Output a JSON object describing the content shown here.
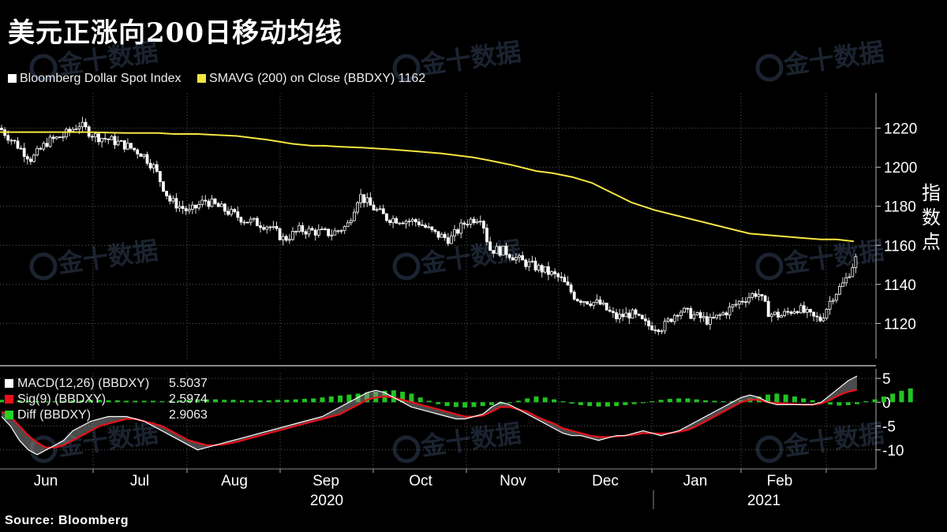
{
  "title": "美元正涨向200日移动均线",
  "source": "Source:  Bloomberg",
  "watermark": "金十数据",
  "legend": [
    {
      "label": "Bloomberg Dollar Spot Index",
      "color": "#ffffff"
    },
    {
      "label": "SMAVG (200)  on Close (BBDXY) 1162",
      "color": "#f5e642"
    }
  ],
  "macd_legend": [
    {
      "label": "MACD(12,26) (BBDXY)",
      "value": "5.5037",
      "color": "#ffffff"
    },
    {
      "label": "Sig(9) (BBDXY)",
      "value": "2.5974",
      "color": "#e8101a"
    },
    {
      "label": "Diff (BBDXY)",
      "value": "2.9063",
      "color": "#22d322"
    }
  ],
  "y_unit": "指数点",
  "chart_data": [
    {
      "type": "line",
      "title": "",
      "x_months": [
        "Jun",
        "Jul",
        "Aug",
        "Sep",
        "Oct",
        "Nov",
        "Dec",
        "Jan",
        "Feb"
      ],
      "x_years": [
        "2020",
        "2021"
      ],
      "ylim": [
        1102,
        1238
      ],
      "yticks": [
        1120,
        1140,
        1160,
        1180,
        1200,
        1220
      ],
      "ylabel": "指数点",
      "series": [
        {
          "name": "Bloomberg Dollar Spot Index",
          "style": "candles",
          "x": [
            0,
            4,
            8,
            12,
            16,
            20,
            24,
            28,
            32,
            36,
            40,
            44,
            48,
            52,
            56,
            60,
            64,
            68,
            72,
            76,
            80,
            84,
            88,
            92,
            96,
            100,
            104,
            108,
            112,
            116,
            120,
            124,
            128,
            132,
            136,
            140,
            144,
            148,
            152,
            156,
            160,
            164,
            168,
            172,
            176,
            180,
            184,
            188,
            192,
            196,
            200,
            204,
            208,
            212,
            216,
            220,
            224,
            228,
            232,
            236,
            240,
            244,
            248,
            252,
            256
          ],
          "values": [
            1224,
            1216,
            1214,
            1212,
            1209,
            1205,
            1202,
            1210,
            1215,
            1214,
            1212,
            1216,
            1213,
            1211,
            1214,
            1218,
            1221,
            1218,
            1216,
            1214,
            1213,
            1212,
            1210,
            1208,
            1210,
            1211,
            1209,
            1210,
            1206,
            1207,
            1205,
            1203,
            1201,
            1195,
            1186,
            1180,
            1178,
            1177,
            1176,
            1178,
            1180,
            1181,
            1180,
            1178,
            1177,
            1175,
            1172,
            1170,
            1168,
            1167,
            1166,
            1164,
            1162,
            1163,
            1165,
            1167,
            1168,
            1168,
            1170,
            1171,
            1170,
            1169,
            1168,
            1166,
            1170
          ]
        },
        {
          "name": "SMAVG (200)  on Close (BBDXY) 1162",
          "x": [
            0,
            60,
            110,
            160,
            200,
            220,
            250,
            300,
            340,
            370,
            395,
            410,
            430,
            460,
            500,
            530,
            560,
            580,
            600,
            620,
            650,
            680,
            700,
            725,
            750,
            780,
            800,
            830,
            860,
            890,
            920,
            950,
            980,
            1010,
            1040,
            1060,
            1082
          ],
          "values": [
            1218,
            1218,
            1218,
            1217.5,
            1217.5,
            1217,
            1217,
            1216,
            1214,
            1212,
            1211,
            1211,
            1210.5,
            1210,
            1209,
            1208,
            1207,
            1206,
            1205,
            1203.5,
            1201,
            1198,
            1197,
            1195,
            1192,
            1186,
            1182,
            1178,
            1175,
            1172,
            1169,
            1166,
            1165,
            1164,
            1163,
            1163,
            1162
          ]
        }
      ]
    },
    {
      "type": "line",
      "title": "",
      "ylim": [
        -14,
        7
      ],
      "yticks": [
        -10,
        -5,
        0,
        5
      ],
      "series": [
        {
          "name": "MACD(12,26) (BBDXY)",
          "values": [
            -3,
            -5,
            -8,
            -10,
            -11,
            -10,
            -9,
            -8,
            -6,
            -5,
            -4,
            -3.5,
            -3,
            -3,
            -3,
            -3.5,
            -4,
            -5,
            -6,
            -7,
            -8,
            -9,
            -10,
            -9.5,
            -9,
            -8.5,
            -8,
            -7.5,
            -7,
            -6.5,
            -6,
            -5.5,
            -5,
            -4.5,
            -4,
            -3.5,
            -3,
            -2,
            -1,
            0,
            1,
            2,
            2.5,
            2,
            1,
            0,
            -1,
            -1.5,
            -2,
            -2.5,
            -3,
            -3.5,
            -3.5,
            -3,
            -2.5,
            -1,
            0,
            -0.5,
            -1.5,
            -2.5,
            -3.5,
            -4.5,
            -5.5,
            -6.5,
            -7,
            -7,
            -7.5,
            -8,
            -7.5,
            -7,
            -7,
            -6.5,
            -6,
            -6.5,
            -7,
            -6.5,
            -6,
            -5,
            -4,
            -3,
            -2,
            -1,
            0,
            1,
            1.5,
            1,
            0,
            -0.5,
            -0.5,
            -0.5,
            -0.5,
            -0.5,
            0,
            1.5,
            3,
            4.5,
            5.5
          ]
        },
        {
          "name": "Sig(9) (BBDXY)",
          "values": [
            -2,
            -3,
            -5,
            -7,
            -8.5,
            -9.5,
            -9.5,
            -9,
            -8,
            -7,
            -6,
            -5,
            -4.5,
            -4,
            -3.5,
            -3.5,
            -4,
            -4.5,
            -5,
            -6,
            -7,
            -8,
            -8.5,
            -9,
            -9,
            -8.8,
            -8.5,
            -8,
            -7.5,
            -7,
            -6.5,
            -6,
            -5.5,
            -5,
            -4.5,
            -4,
            -3.5,
            -3,
            -2.5,
            -1.5,
            -0.5,
            0.5,
            1,
            1.2,
            1,
            0.5,
            0,
            -0.5,
            -1,
            -1.5,
            -2,
            -2.5,
            -3,
            -3,
            -2.8,
            -2,
            -1,
            -1,
            -1.5,
            -2,
            -3,
            -3.8,
            -4.5,
            -5.5,
            -6,
            -6.5,
            -7,
            -7.3,
            -7.3,
            -7.2,
            -7,
            -6.8,
            -6.5,
            -6.5,
            -6.6,
            -6.5,
            -6.2,
            -5.8,
            -5,
            -4,
            -3,
            -2,
            -1,
            0,
            0.5,
            0.5,
            0,
            -0.2,
            -0.3,
            -0.4,
            -0.5,
            -0.5,
            -0.3,
            0.5,
            1.5,
            2.2,
            2.6
          ]
        },
        {
          "name": "Diff (BBDXY)",
          "style": "bars",
          "values": [
            0.5,
            0.5,
            0.4,
            0.3,
            0.2,
            0.2,
            0.2,
            0.3,
            0.4,
            0.4,
            0.5,
            0.5,
            0.4,
            0.4,
            0.3,
            0.3,
            0.3,
            0.3,
            0.2,
            0.3,
            0.4,
            0.5,
            0.6,
            0.6,
            0.6,
            0.5,
            0.5,
            0.4,
            0.4,
            0.4,
            0.4,
            0.5,
            0.5,
            0.6,
            0.7,
            0.8,
            1,
            1.2,
            1.4,
            1.6,
            1.8,
            2,
            2.2,
            2.4,
            2.5,
            2.2,
            1.8,
            1,
            0.3,
            -0.4,
            -0.8,
            -1,
            -1.1,
            -1,
            -0.8,
            -0.6,
            -0.4,
            -0.2,
            0.3,
            0.8,
            1.2,
            1,
            0.6,
            0.2,
            -0.3,
            -0.6,
            -0.8,
            -0.9,
            -0.9,
            -0.8,
            -0.6,
            -0.4,
            -0.2,
            0.2,
            0.5,
            0.7,
            0.8,
            0.8,
            0.6,
            0.4,
            0.3,
            0.2,
            0.2,
            0.4,
            0.8,
            1.2,
            1.6,
            1.8,
            1.6,
            1.2,
            0.8,
            0.4,
            -0.2,
            -0.5,
            -0.7,
            -0.6,
            -0.4,
            0.2,
            0.6,
            1.2,
            1.8,
            2.4,
            2.9
          ]
        }
      ]
    }
  ]
}
